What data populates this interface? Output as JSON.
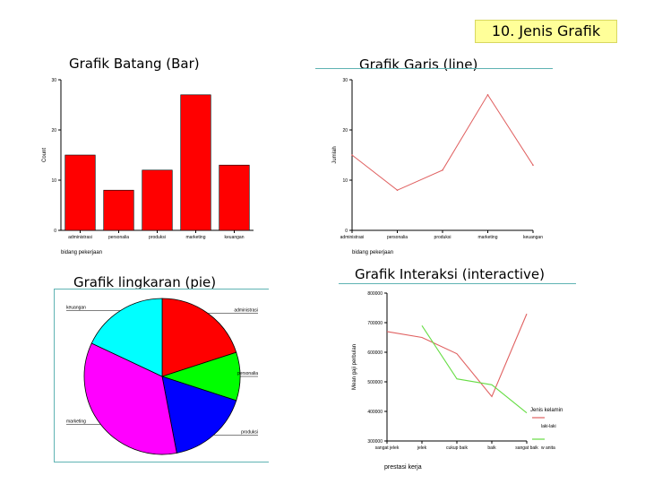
{
  "slide_title": "10. Jenis Grafik",
  "captions": {
    "bar": "Grafik Batang (Bar)",
    "line": "Grafik Garis (line)",
    "pie": "Grafik lingkaran (pie)",
    "interactive": "Grafik Interaksi (interactive)"
  },
  "colors": {
    "bar_fill": "#ff0000",
    "line_stroke": "#e06060",
    "male_line": "#e06060",
    "female_line": "#66dd44"
  },
  "chart_data": [
    {
      "id": "bar",
      "type": "bar",
      "categories": [
        "administrasi",
        "personalia",
        "produksi",
        "marketing",
        "keuangan"
      ],
      "values": [
        15,
        8,
        12,
        27,
        13
      ],
      "xlabel": "bidang pekerjaan",
      "ylabel": "Count",
      "ylim": [
        0,
        30
      ],
      "yticks": [
        0,
        10,
        20,
        30
      ],
      "grid": false
    },
    {
      "id": "line",
      "type": "line",
      "categories": [
        "administrasi",
        "personalia",
        "produksi",
        "marketing",
        "keuangan"
      ],
      "values": [
        15,
        8,
        12,
        27,
        13
      ],
      "xlabel": "bidang pekerjaan",
      "ylabel": "Jumlah",
      "ylim": [
        0,
        30
      ],
      "yticks": [
        0,
        10,
        20,
        30
      ],
      "grid": false
    },
    {
      "id": "pie",
      "type": "pie",
      "labels": [
        "administrasi",
        "personalia",
        "produksi",
        "marketing",
        "keuangan"
      ],
      "values": [
        20,
        10,
        17,
        35,
        18
      ],
      "colors": [
        "#ff0000",
        "#00ff00",
        "#0000ff",
        "#ff00ff",
        "#00ffff"
      ]
    },
    {
      "id": "interactive",
      "type": "line",
      "categories": [
        "sangat jelek",
        "jelek",
        "cukup baik",
        "baik",
        "sangat baik"
      ],
      "series": [
        {
          "name": "laki-laki",
          "values": [
            670000,
            650000,
            595000,
            450000,
            730000
          ]
        },
        {
          "name": "w anita",
          "values": [
            null,
            690000,
            510000,
            490000,
            395000
          ]
        }
      ],
      "xlabel": "prestasi kerja",
      "ylabel": "Mean gaji perbulan",
      "ylim": [
        300000,
        800000
      ],
      "yticks": [
        300000,
        400000,
        500000,
        600000,
        700000,
        800000
      ],
      "ytick_labels": [
        "300000",
        "400000",
        "500000",
        "600000",
        "700000",
        "800000"
      ],
      "legend_title": "Jenis kelamin",
      "legend_position": "right",
      "grid": false
    }
  ]
}
